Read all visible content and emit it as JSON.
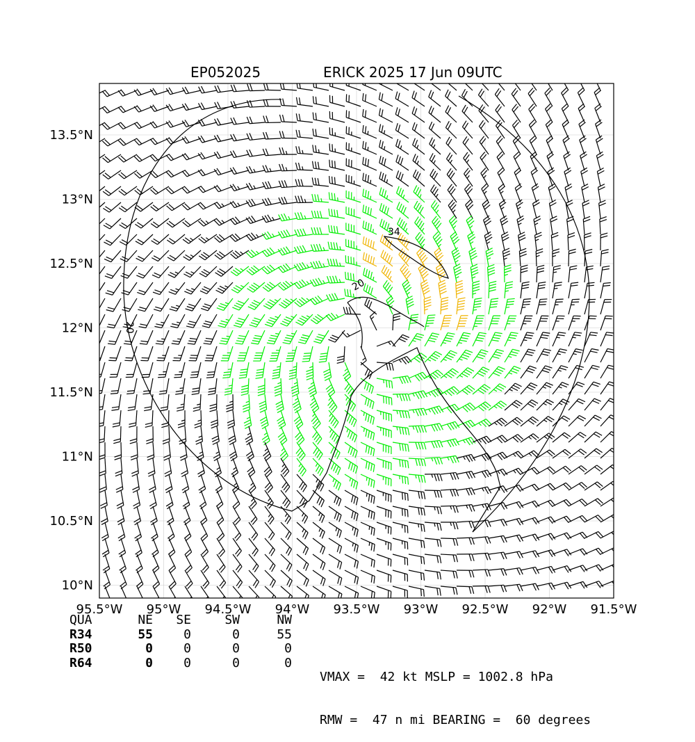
{
  "header": {
    "storm_id": "EP052025",
    "storm_title": "ERICK 2025 17 Jun 09UTC"
  },
  "map": {
    "lon_ticks": [
      "95.5°W",
      "95°W",
      "94.5°W",
      "94°W",
      "93.5°W",
      "93°W",
      "92.5°W",
      "92°W",
      "91.5°W"
    ],
    "lat_ticks": [
      "13.5°N",
      "13°N",
      "12.5°N",
      "12°N",
      "11.5°N",
      "11°N",
      "10.5°N",
      "10°N"
    ],
    "contour_labels": [
      "20",
      "34",
      "20"
    ],
    "colors": {
      "barb_low": "#000000",
      "barb_34kt": "#00ee00",
      "barb_50kt": "#f0b400",
      "contour": "#000000",
      "grid": "#cccccc"
    },
    "center_lon": -93.4,
    "center_lat": 11.92
  },
  "wind_radii_table": {
    "header": [
      "QUA",
      "NE",
      "SE",
      "SW",
      "NW"
    ],
    "rows": [
      {
        "label": "R34",
        "ne": "55",
        "se": "0",
        "sw": "0",
        "nw": "55"
      },
      {
        "label": "R50",
        "ne": "0",
        "se": "0",
        "sw": "0",
        "nw": "0"
      },
      {
        "label": "R64",
        "ne": "0",
        "se": "0",
        "sw": "0",
        "nw": "0"
      }
    ]
  },
  "stats": {
    "line1": "VMAX =  42 kt MSLP = 1002.8 hPa",
    "line2": "RMW =  47 n mi BEARING =  60 degrees"
  }
}
